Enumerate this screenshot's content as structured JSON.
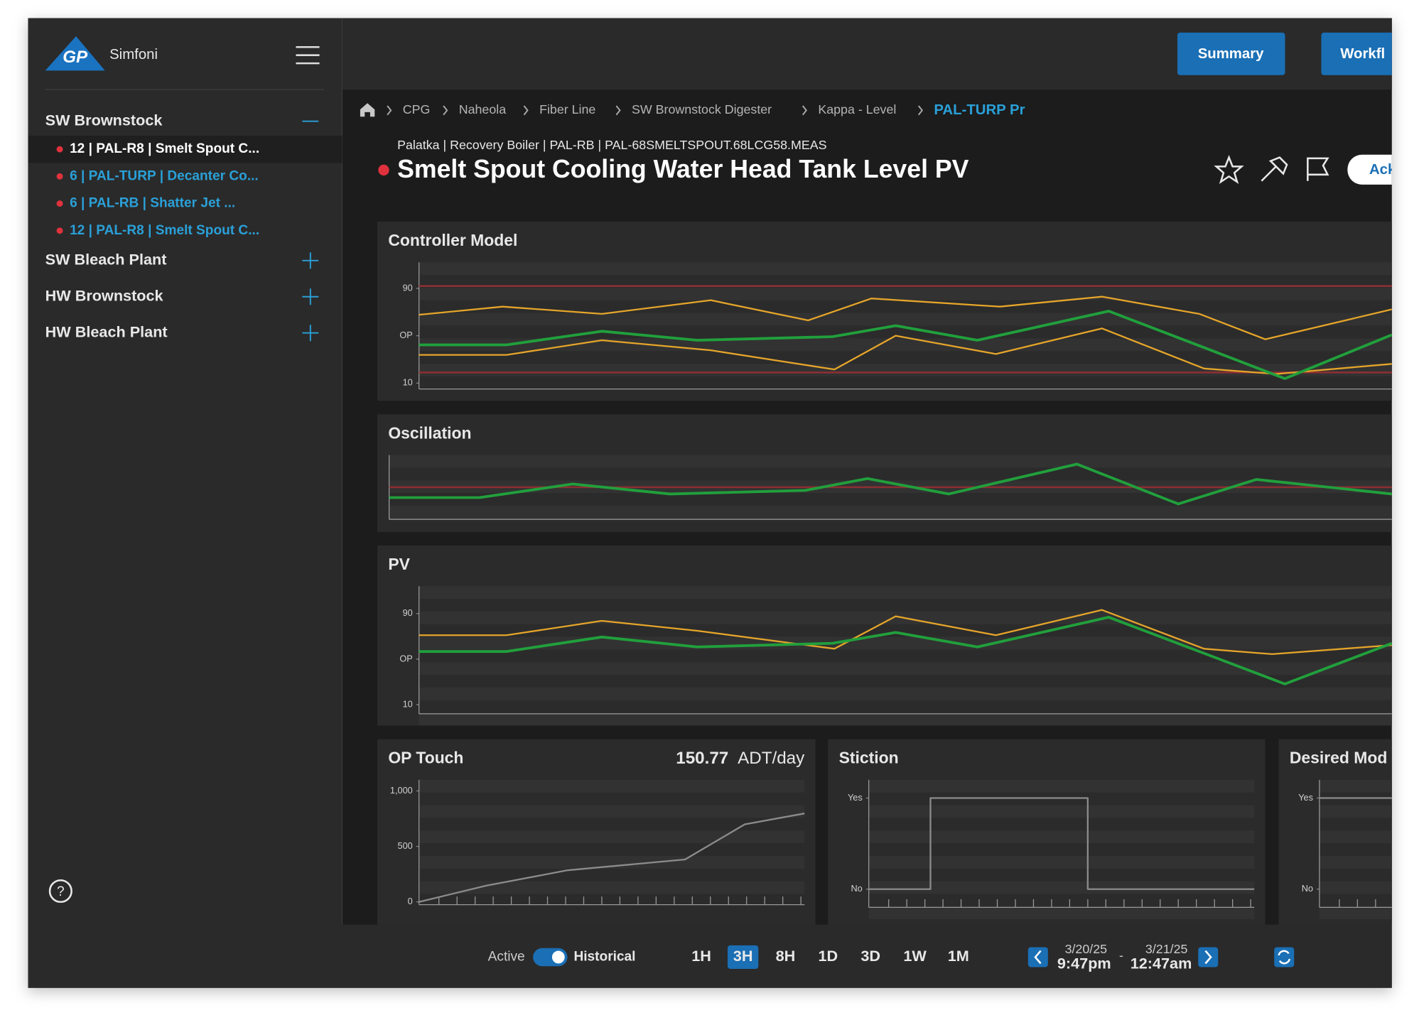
{
  "app": {
    "logo": "GP",
    "name": "Simfoni"
  },
  "header_buttons": [
    "Summary",
    "Workfl"
  ],
  "sidebar": {
    "groups": [
      {
        "name": "SW Brownstock",
        "items": [
          "12 | PAL-R8 | Smelt Spout C...",
          "6 | PAL-TURP  | Decanter Co...",
          "6 | PAL-RB  | Shatter Jet ...",
          "12 | PAL-R8 | Smelt Spout C..."
        ]
      },
      {
        "name": "SW Bleach Plant"
      },
      {
        "name": "HW Brownstock"
      },
      {
        "name": "HW Bleach Plant"
      }
    ]
  },
  "breadcrumb": [
    "CPG",
    "Naheola",
    "Fiber Line",
    "SW Brownstock Digester",
    "Kappa - Level",
    "PAL-TURP Pr"
  ],
  "tag_path": "Palatka | Recovery Boiler | PAL-RB | PAL-68SMELTSPOUT.68LCG58.MEAS",
  "title": "Smelt Spout Cooling Water Head Tank Level PV",
  "ack_button": "Ack",
  "charts": [
    {
      "type": "line",
      "title": "Controller Model",
      "xlim": [
        0,
        100
      ],
      "ylim": [
        5,
        112
      ],
      "yticks": [
        10,
        {
          "value": 50,
          "label": "OP"
        },
        90
      ],
      "limits": [
        92,
        19
      ],
      "limit_color": "#8b2f33",
      "series": [
        {
          "color": "#e5a52a",
          "x": [
            0,
            8.6,
            18.8,
            30,
            40,
            46.5,
            59.7,
            70.2,
            80.2,
            87,
            100
          ],
          "values": [
            67.7,
            74.6,
            68.5,
            80,
            63,
            81.5,
            74.6,
            83,
            68.5,
            47,
            72.3
          ]
        },
        {
          "color": "#e5a52a",
          "x": [
            0,
            9,
            18.8,
            30,
            42.7,
            49,
            59.3,
            70.2,
            80.7,
            88.1,
            100
          ],
          "values": [
            33.8,
            33.8,
            46.2,
            37.7,
            21.5,
            50,
            34.6,
            56.2,
            22.3,
            17.7,
            26.2
          ]
        },
        {
          "color": "#21a03c",
          "x": [
            0,
            9,
            18.8,
            28.6,
            42.5,
            49,
            57.4,
            70.9,
            80.7,
            89,
            100
          ],
          "values": [
            42.3,
            42.3,
            53.8,
            46.2,
            49.2,
            58.5,
            46.2,
            70.8,
            40,
            13.8,
            50.8
          ]
        }
      ]
    },
    {
      "type": "line",
      "title": "Oscillation",
      "xlim": [
        0,
        100
      ],
      "ylim": [
        0,
        100
      ],
      "limits": [
        50
      ],
      "limit_color": "#8b2f33",
      "series": [
        {
          "color": "#21a03c",
          "x": [
            0,
            9,
            18.3,
            28,
            41.5,
            47.7,
            55.8,
            68.6,
            78.7,
            86.5,
            100
          ],
          "values": [
            33.8,
            33.8,
            54.9,
            39.4,
            45,
            63.4,
            39.4,
            85.9,
            23.9,
            62,
            39.4
          ]
        }
      ]
    },
    {
      "type": "line",
      "title": "PV",
      "xlim": [
        0,
        100
      ],
      "ylim": [
        2,
        114
      ],
      "yticks": [
        10,
        {
          "value": 50,
          "label": "OP"
        },
        90
      ],
      "series": [
        {
          "color": "#e5a52a",
          "x": [
            0,
            9,
            18.8,
            28.6,
            42.7,
            49,
            59.3,
            70.2,
            80.7,
            87.7,
            100
          ],
          "values": [
            71,
            71,
            83.6,
            74.9,
            59.1,
            87.6,
            71,
            93.2,
            59.1,
            54.4,
            62.3
          ]
        },
        {
          "color": "#21a03c",
          "x": [
            0,
            9,
            18.8,
            28.6,
            42.5,
            49,
            57.4,
            70.9,
            80.7,
            89,
            100
          ],
          "values": [
            56.7,
            56.7,
            69.4,
            60.7,
            63.9,
            73.4,
            60.7,
            86.8,
            55.1,
            28.2,
            63.9
          ]
        }
      ]
    },
    {
      "type": "line",
      "title": "OP Touch",
      "value": "150.77",
      "unit": "ADT/day",
      "xlim": [
        0,
        100
      ],
      "ylim": [
        -25,
        1100
      ],
      "yticks": [
        0,
        500,
        {
          "value": 1000,
          "label": "1,000"
        }
      ],
      "series": [
        {
          "color": "#8c8c8c",
          "x": [
            0,
            17.4,
            38.5,
            69,
            84.5,
            100
          ],
          "values": [
            0,
            146,
            285,
            382,
            699,
            797
          ]
        }
      ]
    },
    {
      "type": "line",
      "title": "Stiction",
      "xlim": [
        0,
        100
      ],
      "ylim": [
        -0.2,
        1.2
      ],
      "yticks": [
        {
          "value": 0,
          "label": "No"
        },
        {
          "value": 1,
          "label": "Yes"
        }
      ],
      "series": [
        {
          "color": "#8c8c8c",
          "x": [
            0,
            16,
            16,
            56.8,
            56.8,
            100
          ],
          "values": [
            0,
            0,
            1,
            1,
            0,
            0
          ]
        }
      ]
    },
    {
      "type": "line",
      "title": "Desired Mod",
      "xlim": [
        0,
        100
      ],
      "ylim": [
        -0.2,
        1.2
      ],
      "yticks": [
        {
          "value": 0,
          "label": "No"
        },
        {
          "value": 1,
          "label": "Yes"
        }
      ],
      "series": [
        {
          "color": "#8c8c8c",
          "x": [
            0,
            100
          ],
          "values": [
            1,
            1
          ]
        }
      ]
    }
  ],
  "footer": {
    "mode_left": "Active",
    "mode_right": "Historical",
    "ranges": [
      "1H",
      "3H",
      "8H",
      "1D",
      "3D",
      "1W",
      "1M"
    ],
    "selected_range": "3H",
    "start_date": "3/20/25",
    "start_time": "9:47pm",
    "separator": "-",
    "end_date": "3/21/25",
    "end_time": "12:47am"
  }
}
